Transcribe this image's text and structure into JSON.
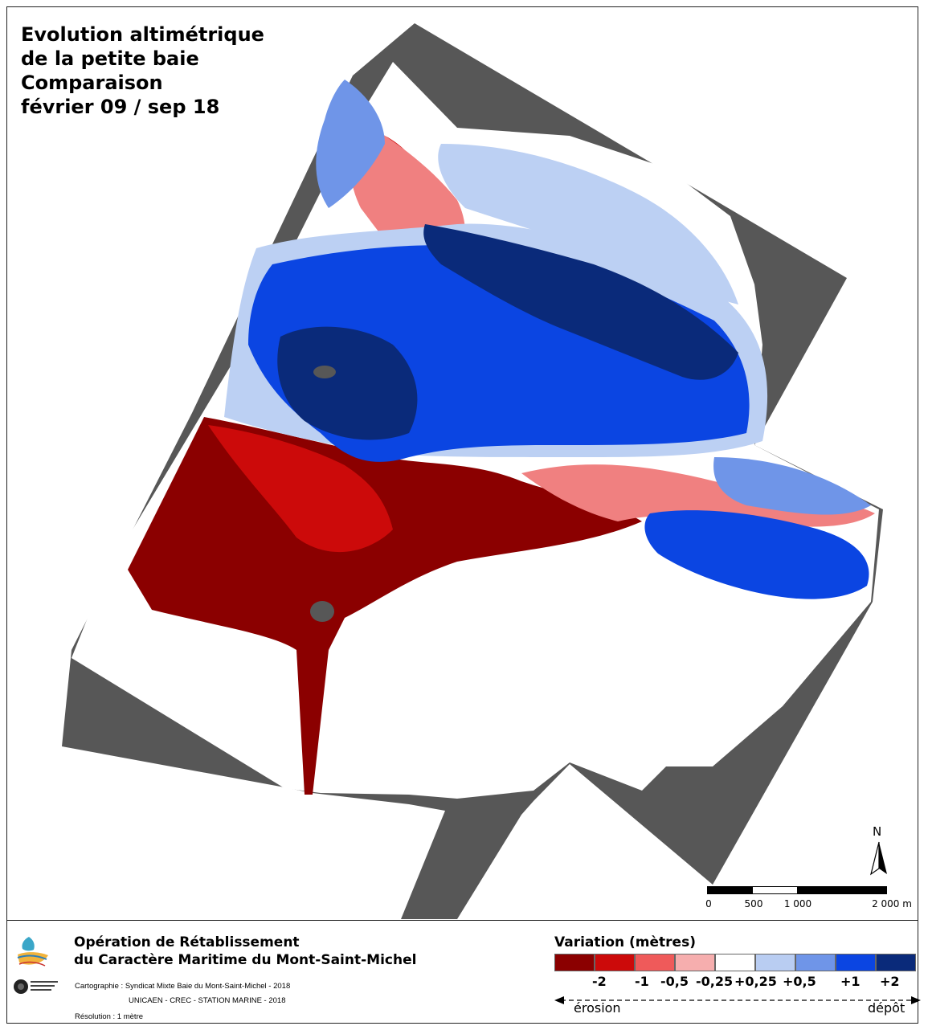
{
  "map": {
    "title_lines": [
      "Evolution altimétrique",
      "de la petite baie",
      "Comparaison",
      "février 09 / sep 18"
    ],
    "north_label": "N",
    "scale": {
      "ticks": [
        "0",
        "500",
        "1 000",
        "2 000 m"
      ]
    }
  },
  "footer": {
    "operation_line1": "Opération de Rétablissement",
    "operation_line2": "du Caractère Maritime du Mont-Saint-Michel",
    "credit_cartographie": "Cartographie : Syndicat Mixte Baie du Mont-Saint-Michel - 2018",
    "credit_unicaen": "UNICAEN - CREC - STATION MARINE - 2018",
    "resolution": "Résolution : 1 mètre"
  },
  "legend": {
    "title": "Variation (mètres)",
    "colors": [
      "#8b0000",
      "#cc0a0a",
      "#ef5a5a",
      "#f6aeae",
      "#ffffff",
      "#b9cdf2",
      "#6f95e8",
      "#0b45e2",
      "#0a2a7a"
    ],
    "labels": [
      "-2",
      "-1",
      "-0,5",
      "-0,25",
      "+0,25",
      "+0,5",
      "+1",
      "+2"
    ],
    "left_label": "érosion",
    "right_label": "dépôt"
  },
  "palette": {
    "nodata": "#575757",
    "dark_red": "#8b0000",
    "red": "#cc0a0a",
    "light_red": "#f08080",
    "pale_red": "#f8c3c3",
    "pale_blue": "#bcd0f3",
    "light_blue": "#6f95e8",
    "blue": "#0b45e2",
    "dark_blue": "#0a2a7a"
  }
}
